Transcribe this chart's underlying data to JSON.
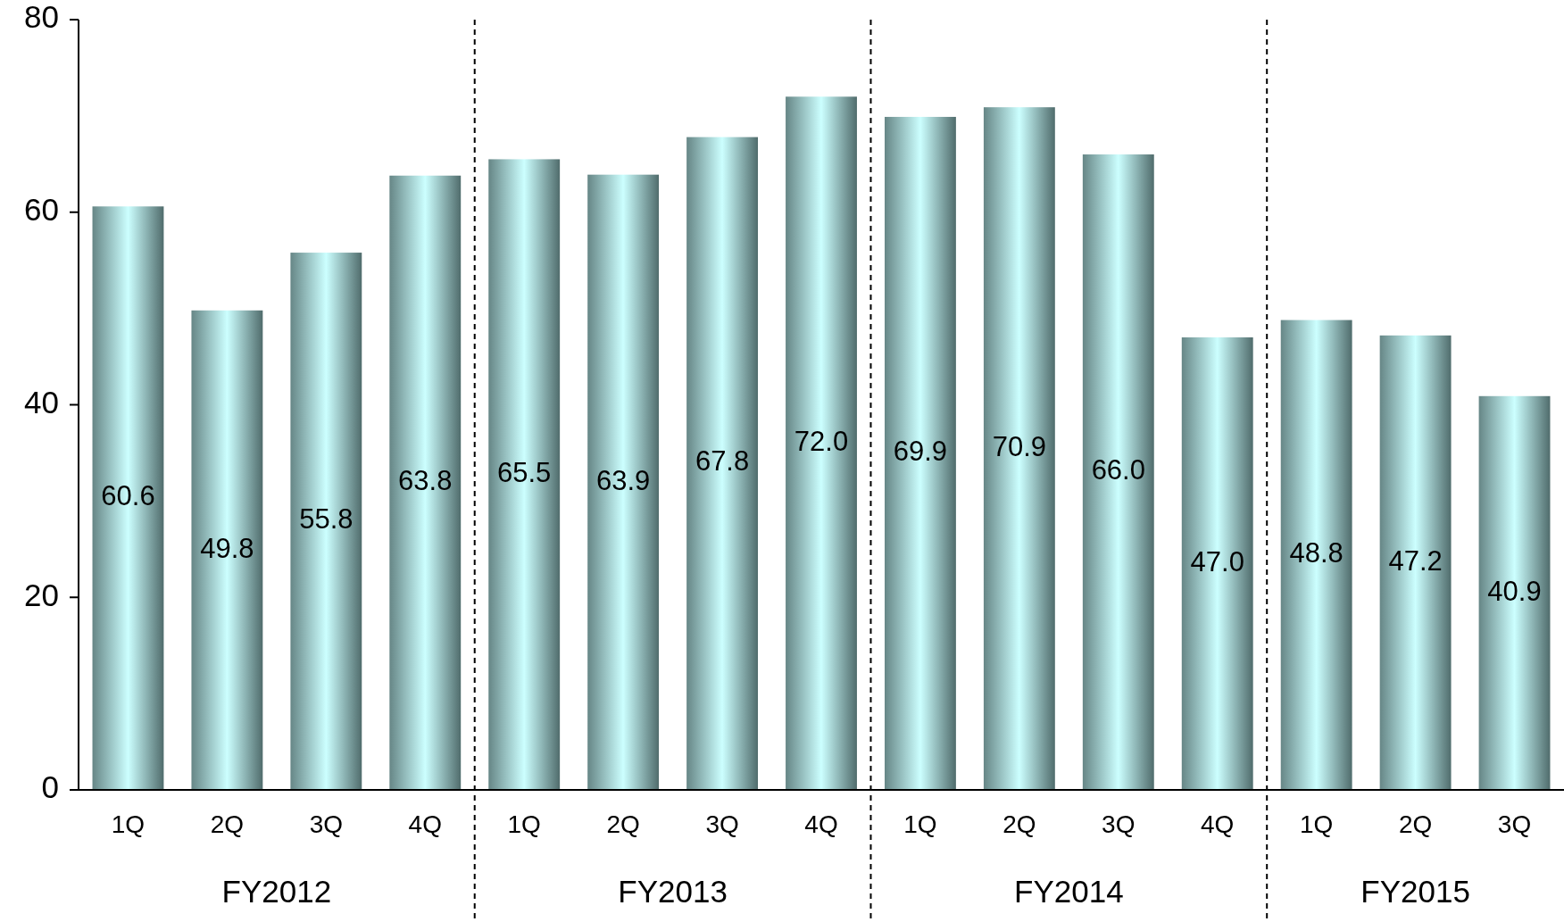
{
  "chart_data": {
    "type": "bar",
    "categories": [
      "1Q",
      "2Q",
      "3Q",
      "4Q",
      "1Q",
      "2Q",
      "3Q",
      "4Q",
      "1Q",
      "2Q",
      "3Q",
      "4Q",
      "1Q",
      "2Q",
      "3Q"
    ],
    "values": [
      60.6,
      49.8,
      55.8,
      63.8,
      65.5,
      63.9,
      67.8,
      72.0,
      69.9,
      70.9,
      66.0,
      47.0,
      48.8,
      47.2,
      40.9
    ],
    "value_labels": [
      "60.6",
      "49.8",
      "55.8",
      "63.8",
      "65.5",
      "63.9",
      "67.8",
      "72.0",
      "69.9",
      "70.9",
      "66.0",
      "47.0",
      "48.8",
      "47.2",
      "40.9"
    ],
    "color": "#ccffff",
    "ylim": [
      0,
      80
    ],
    "yticks": [
      0,
      20,
      40,
      60,
      80
    ],
    "grid": false,
    "annotations": [
      "FY2012",
      "FY2013",
      "FY2014",
      "FY2015"
    ]
  }
}
